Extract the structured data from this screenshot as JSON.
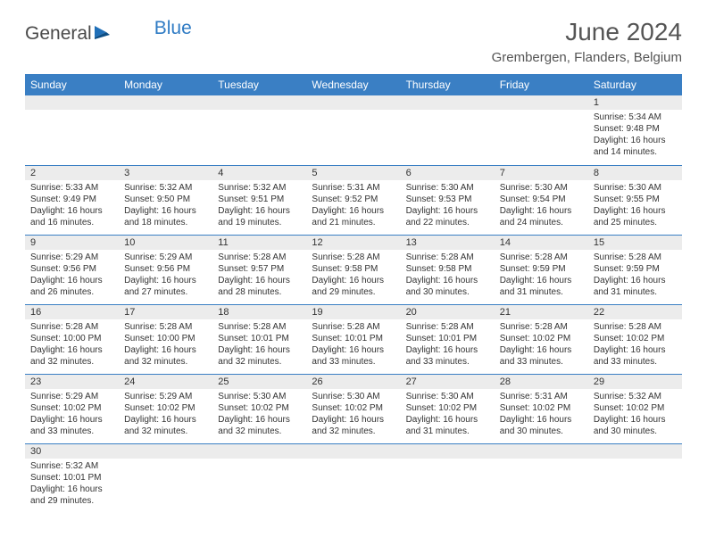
{
  "logo": {
    "general": "General",
    "blue": "Blue"
  },
  "title": "June 2024",
  "location": "Grembergen, Flanders, Belgium",
  "colors": {
    "header_bg": "#3a7fc4",
    "header_text": "#ffffff",
    "daynum_bg": "#ececec",
    "border": "#3a7fc4",
    "text": "#333333",
    "title_text": "#555555",
    "logo_gray": "#4a4a4a",
    "logo_blue": "#2f7bc4"
  },
  "day_headers": [
    "Sunday",
    "Monday",
    "Tuesday",
    "Wednesday",
    "Thursday",
    "Friday",
    "Saturday"
  ],
  "weeks": [
    [
      {
        "n": "",
        "lines": []
      },
      {
        "n": "",
        "lines": []
      },
      {
        "n": "",
        "lines": []
      },
      {
        "n": "",
        "lines": []
      },
      {
        "n": "",
        "lines": []
      },
      {
        "n": "",
        "lines": []
      },
      {
        "n": "1",
        "lines": [
          "Sunrise: 5:34 AM",
          "Sunset: 9:48 PM",
          "Daylight: 16 hours",
          "and 14 minutes."
        ]
      }
    ],
    [
      {
        "n": "2",
        "lines": [
          "Sunrise: 5:33 AM",
          "Sunset: 9:49 PM",
          "Daylight: 16 hours",
          "and 16 minutes."
        ]
      },
      {
        "n": "3",
        "lines": [
          "Sunrise: 5:32 AM",
          "Sunset: 9:50 PM",
          "Daylight: 16 hours",
          "and 18 minutes."
        ]
      },
      {
        "n": "4",
        "lines": [
          "Sunrise: 5:32 AM",
          "Sunset: 9:51 PM",
          "Daylight: 16 hours",
          "and 19 minutes."
        ]
      },
      {
        "n": "5",
        "lines": [
          "Sunrise: 5:31 AM",
          "Sunset: 9:52 PM",
          "Daylight: 16 hours",
          "and 21 minutes."
        ]
      },
      {
        "n": "6",
        "lines": [
          "Sunrise: 5:30 AM",
          "Sunset: 9:53 PM",
          "Daylight: 16 hours",
          "and 22 minutes."
        ]
      },
      {
        "n": "7",
        "lines": [
          "Sunrise: 5:30 AM",
          "Sunset: 9:54 PM",
          "Daylight: 16 hours",
          "and 24 minutes."
        ]
      },
      {
        "n": "8",
        "lines": [
          "Sunrise: 5:30 AM",
          "Sunset: 9:55 PM",
          "Daylight: 16 hours",
          "and 25 minutes."
        ]
      }
    ],
    [
      {
        "n": "9",
        "lines": [
          "Sunrise: 5:29 AM",
          "Sunset: 9:56 PM",
          "Daylight: 16 hours",
          "and 26 minutes."
        ]
      },
      {
        "n": "10",
        "lines": [
          "Sunrise: 5:29 AM",
          "Sunset: 9:56 PM",
          "Daylight: 16 hours",
          "and 27 minutes."
        ]
      },
      {
        "n": "11",
        "lines": [
          "Sunrise: 5:28 AM",
          "Sunset: 9:57 PM",
          "Daylight: 16 hours",
          "and 28 minutes."
        ]
      },
      {
        "n": "12",
        "lines": [
          "Sunrise: 5:28 AM",
          "Sunset: 9:58 PM",
          "Daylight: 16 hours",
          "and 29 minutes."
        ]
      },
      {
        "n": "13",
        "lines": [
          "Sunrise: 5:28 AM",
          "Sunset: 9:58 PM",
          "Daylight: 16 hours",
          "and 30 minutes."
        ]
      },
      {
        "n": "14",
        "lines": [
          "Sunrise: 5:28 AM",
          "Sunset: 9:59 PM",
          "Daylight: 16 hours",
          "and 31 minutes."
        ]
      },
      {
        "n": "15",
        "lines": [
          "Sunrise: 5:28 AM",
          "Sunset: 9:59 PM",
          "Daylight: 16 hours",
          "and 31 minutes."
        ]
      }
    ],
    [
      {
        "n": "16",
        "lines": [
          "Sunrise: 5:28 AM",
          "Sunset: 10:00 PM",
          "Daylight: 16 hours",
          "and 32 minutes."
        ]
      },
      {
        "n": "17",
        "lines": [
          "Sunrise: 5:28 AM",
          "Sunset: 10:00 PM",
          "Daylight: 16 hours",
          "and 32 minutes."
        ]
      },
      {
        "n": "18",
        "lines": [
          "Sunrise: 5:28 AM",
          "Sunset: 10:01 PM",
          "Daylight: 16 hours",
          "and 32 minutes."
        ]
      },
      {
        "n": "19",
        "lines": [
          "Sunrise: 5:28 AM",
          "Sunset: 10:01 PM",
          "Daylight: 16 hours",
          "and 33 minutes."
        ]
      },
      {
        "n": "20",
        "lines": [
          "Sunrise: 5:28 AM",
          "Sunset: 10:01 PM",
          "Daylight: 16 hours",
          "and 33 minutes."
        ]
      },
      {
        "n": "21",
        "lines": [
          "Sunrise: 5:28 AM",
          "Sunset: 10:02 PM",
          "Daylight: 16 hours",
          "and 33 minutes."
        ]
      },
      {
        "n": "22",
        "lines": [
          "Sunrise: 5:28 AM",
          "Sunset: 10:02 PM",
          "Daylight: 16 hours",
          "and 33 minutes."
        ]
      }
    ],
    [
      {
        "n": "23",
        "lines": [
          "Sunrise: 5:29 AM",
          "Sunset: 10:02 PM",
          "Daylight: 16 hours",
          "and 33 minutes."
        ]
      },
      {
        "n": "24",
        "lines": [
          "Sunrise: 5:29 AM",
          "Sunset: 10:02 PM",
          "Daylight: 16 hours",
          "and 32 minutes."
        ]
      },
      {
        "n": "25",
        "lines": [
          "Sunrise: 5:30 AM",
          "Sunset: 10:02 PM",
          "Daylight: 16 hours",
          "and 32 minutes."
        ]
      },
      {
        "n": "26",
        "lines": [
          "Sunrise: 5:30 AM",
          "Sunset: 10:02 PM",
          "Daylight: 16 hours",
          "and 32 minutes."
        ]
      },
      {
        "n": "27",
        "lines": [
          "Sunrise: 5:30 AM",
          "Sunset: 10:02 PM",
          "Daylight: 16 hours",
          "and 31 minutes."
        ]
      },
      {
        "n": "28",
        "lines": [
          "Sunrise: 5:31 AM",
          "Sunset: 10:02 PM",
          "Daylight: 16 hours",
          "and 30 minutes."
        ]
      },
      {
        "n": "29",
        "lines": [
          "Sunrise: 5:32 AM",
          "Sunset: 10:02 PM",
          "Daylight: 16 hours",
          "and 30 minutes."
        ]
      }
    ],
    [
      {
        "n": "30",
        "lines": [
          "Sunrise: 5:32 AM",
          "Sunset: 10:01 PM",
          "Daylight: 16 hours",
          "and 29 minutes."
        ]
      },
      {
        "n": "",
        "lines": []
      },
      {
        "n": "",
        "lines": []
      },
      {
        "n": "",
        "lines": []
      },
      {
        "n": "",
        "lines": []
      },
      {
        "n": "",
        "lines": []
      },
      {
        "n": "",
        "lines": []
      }
    ]
  ]
}
